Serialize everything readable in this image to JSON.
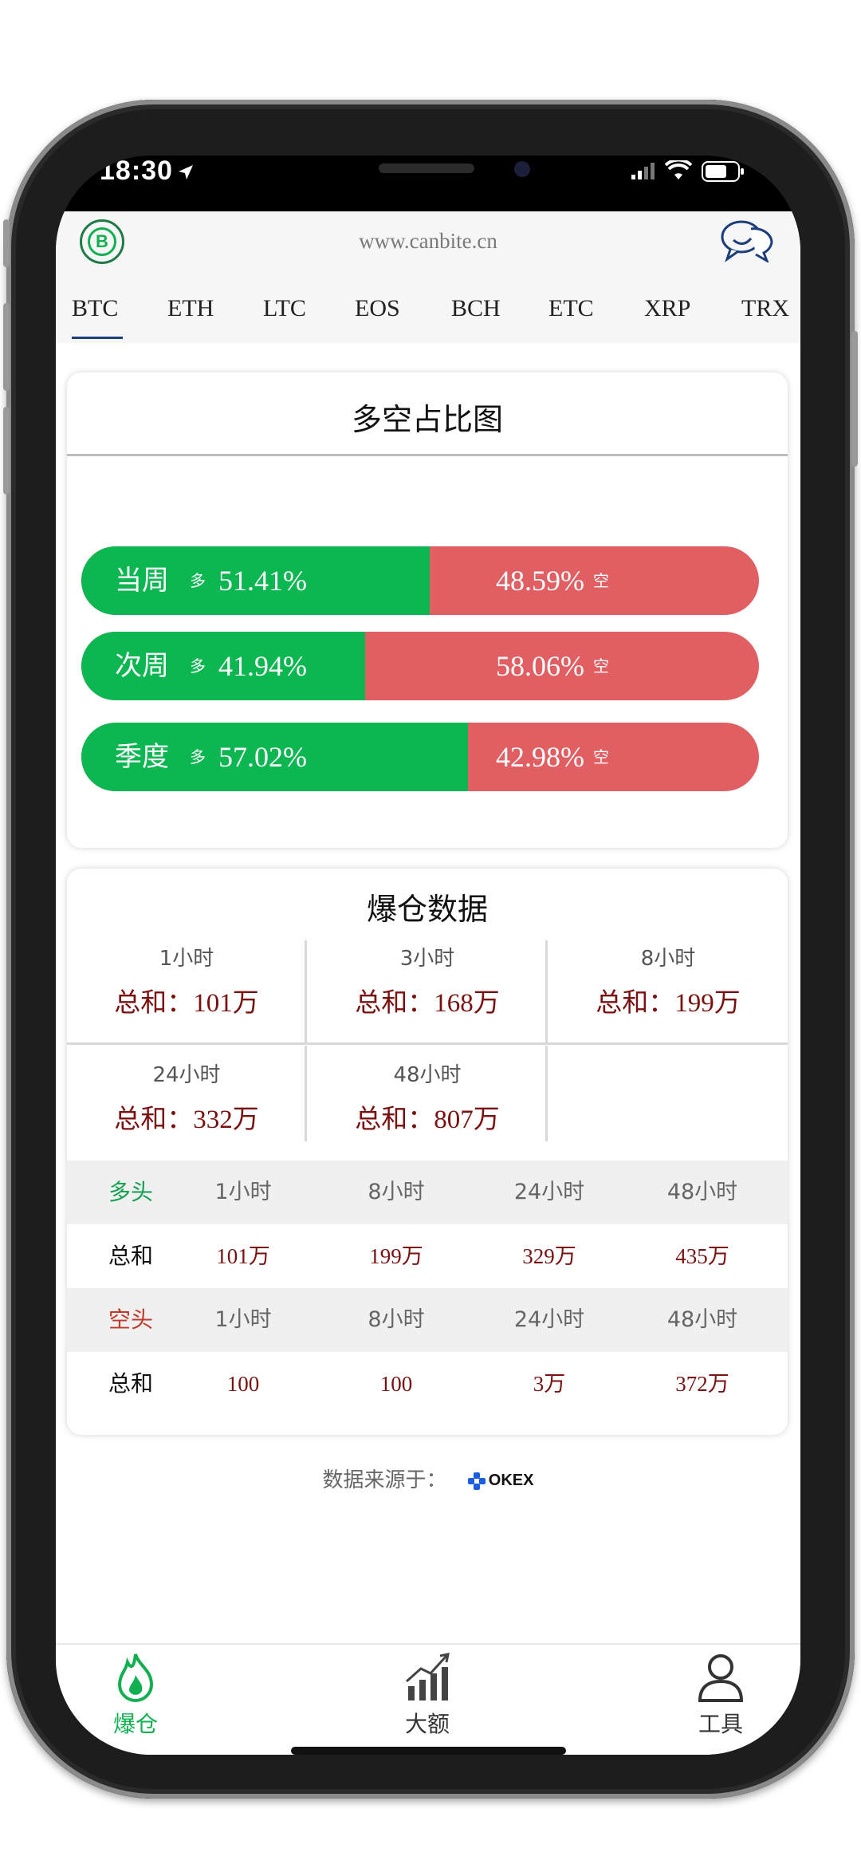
{
  "status": {
    "time": "18:30"
  },
  "header": {
    "site": "www.canbite.cn",
    "logo_letter": "B"
  },
  "coins": [
    "BTC",
    "ETH",
    "LTC",
    "EOS",
    "BCH",
    "ETC",
    "XRP",
    "TRX"
  ],
  "ratio": {
    "title": "多空占比图",
    "long_mark": "多",
    "short_mark": "空",
    "rows": [
      {
        "period": "当周",
        "long_pct": "51.41%",
        "short_pct": "48.59%",
        "long_value": 51.41
      },
      {
        "period": "次周",
        "long_pct": "41.94%",
        "short_pct": "58.06%",
        "long_value": 41.94
      },
      {
        "period": "季度",
        "long_pct": "57.02%",
        "short_pct": "42.98%",
        "long_value": 57.02
      }
    ]
  },
  "liq": {
    "title": "爆仓数据",
    "sum_label": "总和：",
    "cells": [
      {
        "period": "1小时",
        "value": "101万"
      },
      {
        "period": "3小时",
        "value": "168万"
      },
      {
        "period": "8小时",
        "value": "199万"
      },
      {
        "period": "24小时",
        "value": "332万"
      },
      {
        "period": "48小时",
        "value": "807万"
      }
    ],
    "long_label": "多头",
    "short_label": "空头",
    "total_label": "总和",
    "periods": [
      "1小时",
      "8小时",
      "24小时",
      "48小时"
    ],
    "long_values": [
      "101万",
      "199万",
      "329万",
      "435万"
    ],
    "short_values": [
      "100",
      "100",
      "3万",
      "372万"
    ]
  },
  "source": {
    "label": "数据来源于：",
    "brand": "OKEX"
  },
  "tabbar": {
    "items": [
      "爆仓",
      "大额",
      "工具"
    ],
    "active_color": "#10b050"
  },
  "colors": {
    "long": "#0cb651",
    "short": "#e15f62"
  }
}
